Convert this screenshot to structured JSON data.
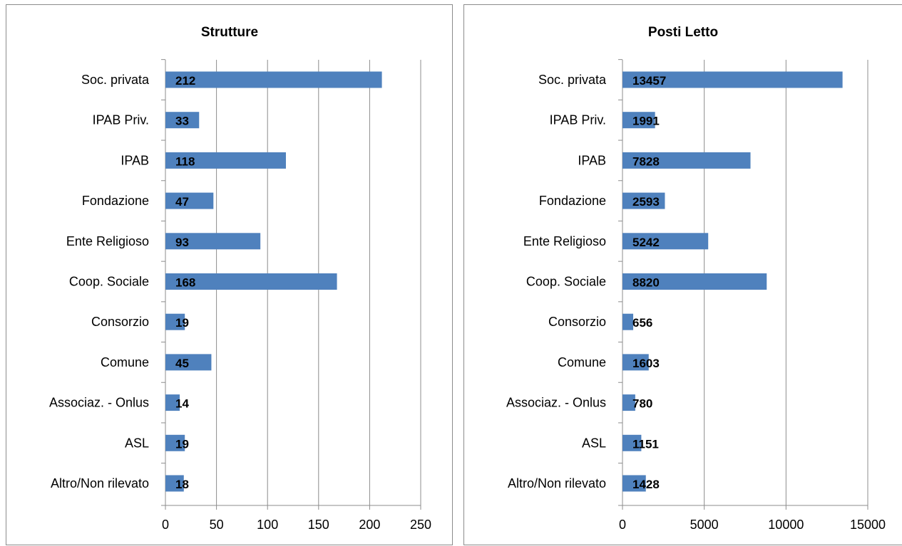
{
  "chart_data": [
    {
      "type": "bar",
      "orientation": "horizontal",
      "title": "Strutture",
      "categories": [
        "Soc. privata",
        "IPAB Priv.",
        "IPAB",
        "Fondazione",
        "Ente Religioso",
        "Coop. Sociale",
        "Consorzio",
        "Comune",
        "Associaz. - Onlus",
        "ASL",
        "Altro/Non rilevato"
      ],
      "values": [
        212,
        33,
        118,
        47,
        93,
        168,
        19,
        45,
        14,
        19,
        18
      ],
      "xlim": [
        0,
        250
      ],
      "xticks": [
        0,
        50,
        100,
        150,
        200,
        250
      ],
      "grid": true,
      "bar_color": "#4f81bd"
    },
    {
      "type": "bar",
      "orientation": "horizontal",
      "title": "Posti Letto",
      "categories": [
        "Soc. privata",
        "IPAB Priv.",
        "IPAB",
        "Fondazione",
        "Ente Religioso",
        "Coop. Sociale",
        "Consorzio",
        "Comune",
        "Associaz. - Onlus",
        "ASL",
        "Altro/Non rilevato"
      ],
      "values": [
        13457,
        1991,
        7828,
        2593,
        5242,
        8820,
        656,
        1603,
        780,
        1151,
        1428
      ],
      "xlim": [
        0,
        15000
      ],
      "xticks": [
        0,
        5000,
        10000,
        15000
      ],
      "grid": true,
      "bar_color": "#4f81bd"
    }
  ]
}
